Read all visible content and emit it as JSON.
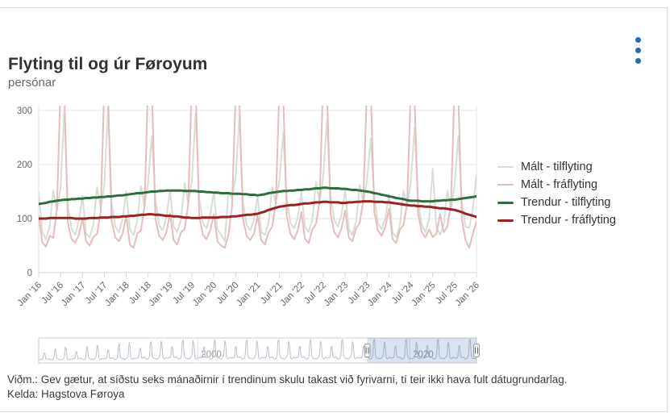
{
  "header": {
    "title": "Flyting til og úr Føroyum",
    "subtitle": "persónar"
  },
  "menu": {
    "icon": "context-menu-dots",
    "color": "#1f6cb5"
  },
  "footer": {
    "note": "Viðm.: Gev gætur, at síðstu seks mánaðirnir í trendinum skulu takast við fyrivarni, tí teir ikki hava fult dátugrundarlag.",
    "source": "Kelda: Hagstova Føroya"
  },
  "navigator": {
    "axis_labels": [
      {
        "text": "2000",
        "year": 2000
      },
      {
        "text": "2020",
        "year": 2020
      }
    ],
    "range_start_year": 1985,
    "range_end_year": 2026,
    "selected_start_year": 2016,
    "selected_end_year": 2026,
    "mask_color": "#335cad",
    "outline_color": "#cccccc",
    "series_color": "#b9c2cc"
  },
  "chart_data": {
    "type": "line",
    "title": "Flyting til og úr Føroyum",
    "subtitle": "persónar",
    "x_unit": "month",
    "x_start": "Jan 2016",
    "x_end": "Jan 2026",
    "x_tick_labels": [
      "Jan '16",
      "Jul '16",
      "Jan '17",
      "Jul '17",
      "Jan '18",
      "Jul '18",
      "Jan '19",
      "Jul '19",
      "Jan '20",
      "Jul '20",
      "Jan '21",
      "Jul '21",
      "Jan '22",
      "Jul '22",
      "Jan '23",
      "Jul '23",
      "Jan '24",
      "Jul '24",
      "Jan '25",
      "Jul '25",
      "Jan '26"
    ],
    "ylim": [
      0,
      300
    ],
    "y_ticks": [
      0,
      100,
      200,
      300
    ],
    "grid": "horizontal",
    "grid_color": "#e6e6e6",
    "axis_color": "#ccd6eb",
    "axis_label_color": "#666666",
    "legend_position": "right",
    "series": [
      {
        "name": "Mált - tilflyting",
        "color": "#d7ded3",
        "width": 2,
        "values": [
          148,
          75,
          62,
          85,
          152,
          115,
          158,
          300,
          125,
          82,
          70,
          95,
          142,
          72,
          65,
          90,
          158,
          118,
          162,
          305,
          130,
          85,
          75,
          100,
          150,
          80,
          70,
          95,
          160,
          122,
          168,
          252,
          135,
          88,
          78,
          102,
          152,
          85,
          75,
          98,
          165,
          128,
          172,
          295,
          138,
          92,
          82,
          108,
          148,
          80,
          70,
          58,
          148,
          138,
          178,
          290,
          132,
          88,
          78,
          98,
          142,
          75,
          70,
          92,
          158,
          128,
          172,
          258,
          138,
          92,
          82,
          102,
          148,
          85,
          75,
          98,
          168,
          132,
          178,
          282,
          142,
          98,
          85,
          108,
          152,
          80,
          70,
          95,
          162,
          128,
          172,
          248,
          138,
          92,
          80,
          102,
          145,
          75,
          65,
          88,
          152,
          122,
          168,
          268,
          132,
          88,
          75,
          98,
          192,
          85,
          70,
          88,
          152,
          118,
          162,
          252,
          128,
          85,
          83,
          118,
          182
        ]
      },
      {
        "name": "Mált - fráflyting",
        "color": "#e5bdbd",
        "width": 2,
        "values": [
          105,
          56,
          48,
          68,
          64,
          118,
          352,
          338,
          92,
          62,
          55,
          70,
          100,
          58,
          50,
          66,
          72,
          112,
          348,
          330,
          95,
          65,
          58,
          72,
          105,
          52,
          46,
          72,
          78,
          122,
          358,
          342,
          100,
          68,
          60,
          75,
          110,
          60,
          52,
          75,
          80,
          128,
          362,
          348,
          105,
          70,
          62,
          78,
          108,
          58,
          50,
          46,
          70,
          122,
          338,
          318,
          100,
          68,
          60,
          72,
          105,
          60,
          52,
          75,
          85,
          128,
          348,
          332,
          105,
          72,
          62,
          78,
          112,
          62,
          55,
          80,
          90,
          132,
          358,
          342,
          110,
          75,
          65,
          82,
          115,
          65,
          58,
          82,
          92,
          135,
          352,
          338,
          112,
          78,
          68,
          85,
          118,
          62,
          55,
          80,
          88,
          128,
          342,
          328,
          108,
          75,
          65,
          80,
          66,
          72,
          108,
          75,
          85,
          125,
          348,
          332,
          98,
          60,
          46,
          72,
          95
        ]
      },
      {
        "name": "Trendur - tilflyting",
        "color": "#2e6e3e",
        "width": 3,
        "values": [
          127,
          128,
          129,
          131,
          132,
          133,
          134,
          135,
          135,
          136,
          136,
          137,
          137,
          138,
          138,
          139,
          139,
          140,
          140,
          141,
          141,
          142,
          143,
          143,
          144,
          145,
          146,
          147,
          147,
          148,
          149,
          150,
          150,
          151,
          151,
          152,
          152,
          152,
          152,
          152,
          151,
          151,
          151,
          151,
          150,
          150,
          149,
          149,
          148,
          148,
          147,
          147,
          147,
          146,
          146,
          146,
          145,
          145,
          144,
          144,
          143,
          144,
          145,
          147,
          148,
          149,
          150,
          151,
          151,
          152,
          152,
          153,
          153,
          154,
          154,
          155,
          156,
          156,
          157,
          157,
          156,
          156,
          156,
          155,
          155,
          154,
          153,
          153,
          152,
          151,
          150,
          149,
          147,
          146,
          144,
          143,
          141,
          140,
          138,
          137,
          136,
          134,
          133,
          133,
          133,
          132,
          132,
          132,
          132,
          133,
          133,
          134,
          134,
          135,
          135,
          136,
          137,
          138,
          139,
          140,
          141
        ]
      },
      {
        "name": "Trendur - fráflyting",
        "color": "#9c2123",
        "width": 3,
        "values": [
          100,
          100,
          100,
          101,
          101,
          101,
          101,
          101,
          101,
          101,
          100,
          100,
          100,
          100,
          101,
          101,
          101,
          102,
          102,
          102,
          103,
          103,
          103,
          104,
          104,
          105,
          105,
          106,
          107,
          107,
          108,
          108,
          107,
          107,
          106,
          105,
          105,
          104,
          104,
          103,
          102,
          102,
          101,
          101,
          101,
          102,
          102,
          102,
          102,
          102,
          103,
          103,
          103,
          104,
          104,
          105,
          106,
          107,
          107,
          108,
          109,
          111,
          113,
          116,
          118,
          120,
          122,
          123,
          124,
          125,
          125,
          126,
          127,
          128,
          128,
          129,
          130,
          130,
          131,
          131,
          130,
          130,
          130,
          129,
          129,
          130,
          130,
          131,
          131,
          132,
          132,
          132,
          131,
          131,
          131,
          130,
          130,
          129,
          128,
          127,
          126,
          125,
          124,
          124,
          123,
          123,
          122,
          122,
          121,
          120,
          119,
          119,
          118,
          117,
          116,
          114,
          112,
          109,
          107,
          105,
          103
        ]
      }
    ]
  }
}
